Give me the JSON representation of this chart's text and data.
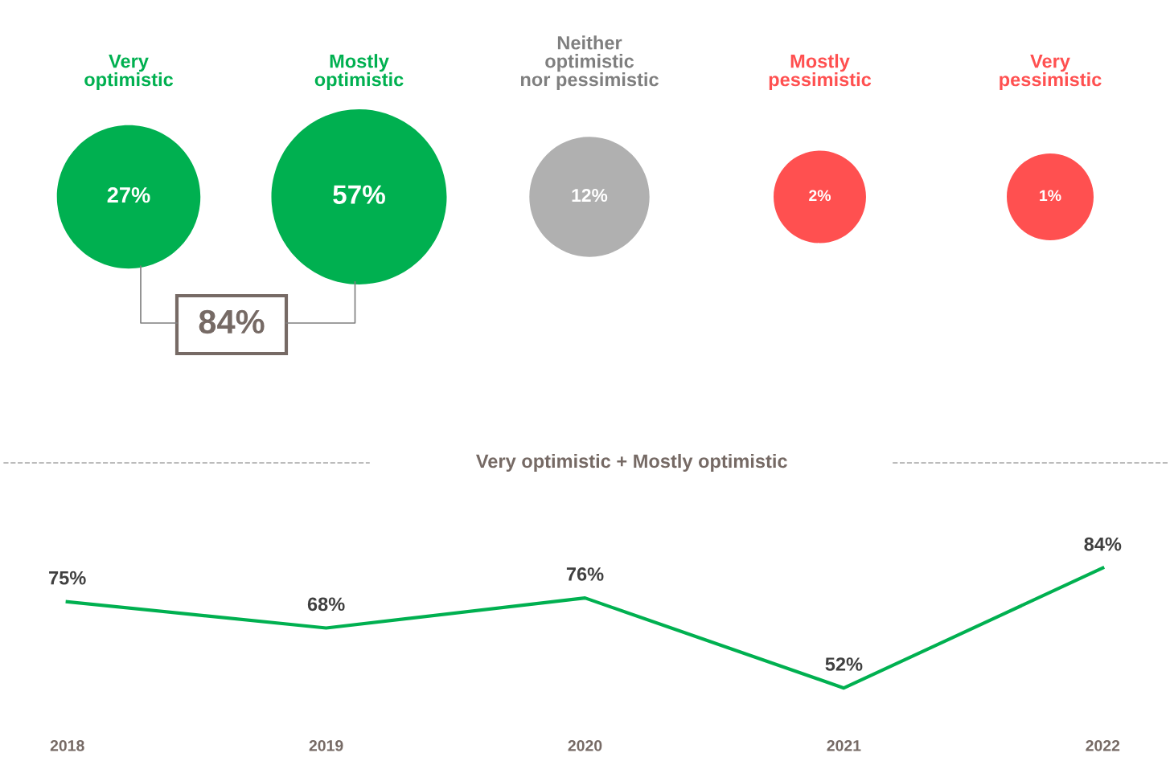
{
  "chart_data": [
    {
      "type": "other",
      "categories": [
        "Very\noptimistic",
        "Mostly\noptimistic",
        "Neither\noptimistic\nnor pessimistic",
        "Mostly\npessimistic",
        "Very\npessimistic"
      ],
      "values": [
        27,
        57,
        12,
        2,
        1
      ],
      "colors": [
        "#00b050",
        "#00b050",
        "#b0b0b0",
        "#ff5050",
        "#ff5050"
      ],
      "value_labels": [
        "27%",
        "57%",
        "12%",
        "2%",
        "1%"
      ],
      "annotations": [
        "84%"
      ]
    },
    {
      "type": "line",
      "title": "Very optimistic + Mostly optimistic",
      "categories": [
        "2018",
        "2019",
        "2020",
        "2021",
        "2022"
      ],
      "series": [
        {
          "color": "#00b050",
          "values": [
            75,
            68,
            76,
            52,
            84
          ],
          "value_labels": [
            "75%",
            "68%",
            "76%",
            "52%",
            "84%"
          ]
        }
      ],
      "tick_labels": "x",
      "marker": "none",
      "line_style": "solid",
      "grid": false,
      "legend": false
    }
  ]
}
